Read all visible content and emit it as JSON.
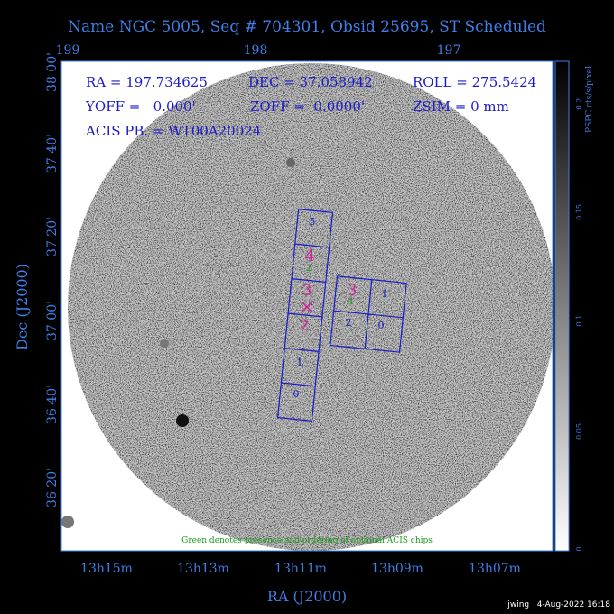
{
  "header": {
    "title": "Name NGC 5005, Seq # 704301, Obsid 25695, ST Scheduled"
  },
  "axes": {
    "top_ticks": [
      "199",
      "198",
      "197"
    ],
    "left_ticks": [
      "38 00'",
      "37 40'",
      "37 20'",
      "37 00'",
      "36 40'",
      "36 20'"
    ],
    "bottom_ticks": [
      "13h15m",
      "13h13m",
      "13h11m",
      "13h09m",
      "13h07m"
    ],
    "x_label": "RA (J2000)",
    "y_label": "Dec (J2000)"
  },
  "info": {
    "ra": "RA = 197.734625",
    "dec": "DEC = 37.058942",
    "roll": "ROLL = 275.5424",
    "yoff": "YOFF =   0.000'",
    "zoff": "ZOFF =  0.0000'",
    "zsim": "ZSIM = 0 mm",
    "acis": "ACIS PB. = WT00A20024"
  },
  "colorbar": {
    "ticks": [
      "0.2",
      "0.15",
      "0.1",
      "0.05",
      "0"
    ],
    "label": "PSPC cts/s/pixel"
  },
  "chips": {
    "s": [
      "5",
      "4",
      "3",
      "2",
      "1",
      "0"
    ],
    "s_optional": [
      "2"
    ],
    "i": [
      "3",
      "1",
      "2",
      "0"
    ],
    "i_optional": [
      "1"
    ]
  },
  "note": "Green denotes presence and ordering of optional ACIS chips",
  "footer": "jwing   4-Aug-2022 16:18"
}
